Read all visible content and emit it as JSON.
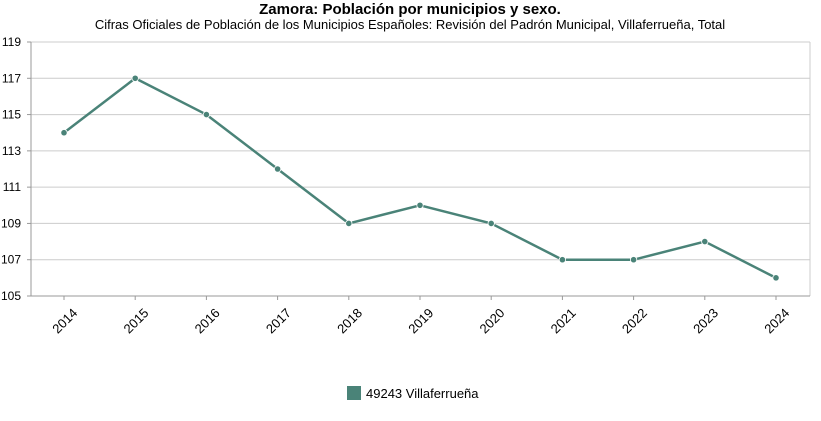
{
  "chart_data": {
    "type": "line",
    "title": "Zamora: Población por municipios y sexo.",
    "subtitle": "Cifras Oficiales de Población de los Municipios Españoles: Revisión del Padrón Municipal, Villaferrueña, Total",
    "xlabel": "",
    "ylabel": "",
    "categories": [
      "2014",
      "2015",
      "2016",
      "2017",
      "2018",
      "2019",
      "2020",
      "2021",
      "2022",
      "2023",
      "2024"
    ],
    "series": [
      {
        "name": "49243 Villaferrueña",
        "values": [
          114,
          117,
          115,
          112,
          109,
          110,
          109,
          107,
          107,
          108,
          106
        ],
        "color": "#4a8378"
      }
    ],
    "ylim": [
      105,
      119
    ],
    "yticks": [
      "105",
      "107",
      "109",
      "111",
      "113",
      "115",
      "117",
      "119"
    ],
    "grid": true,
    "legend_position": "bottom-center"
  }
}
